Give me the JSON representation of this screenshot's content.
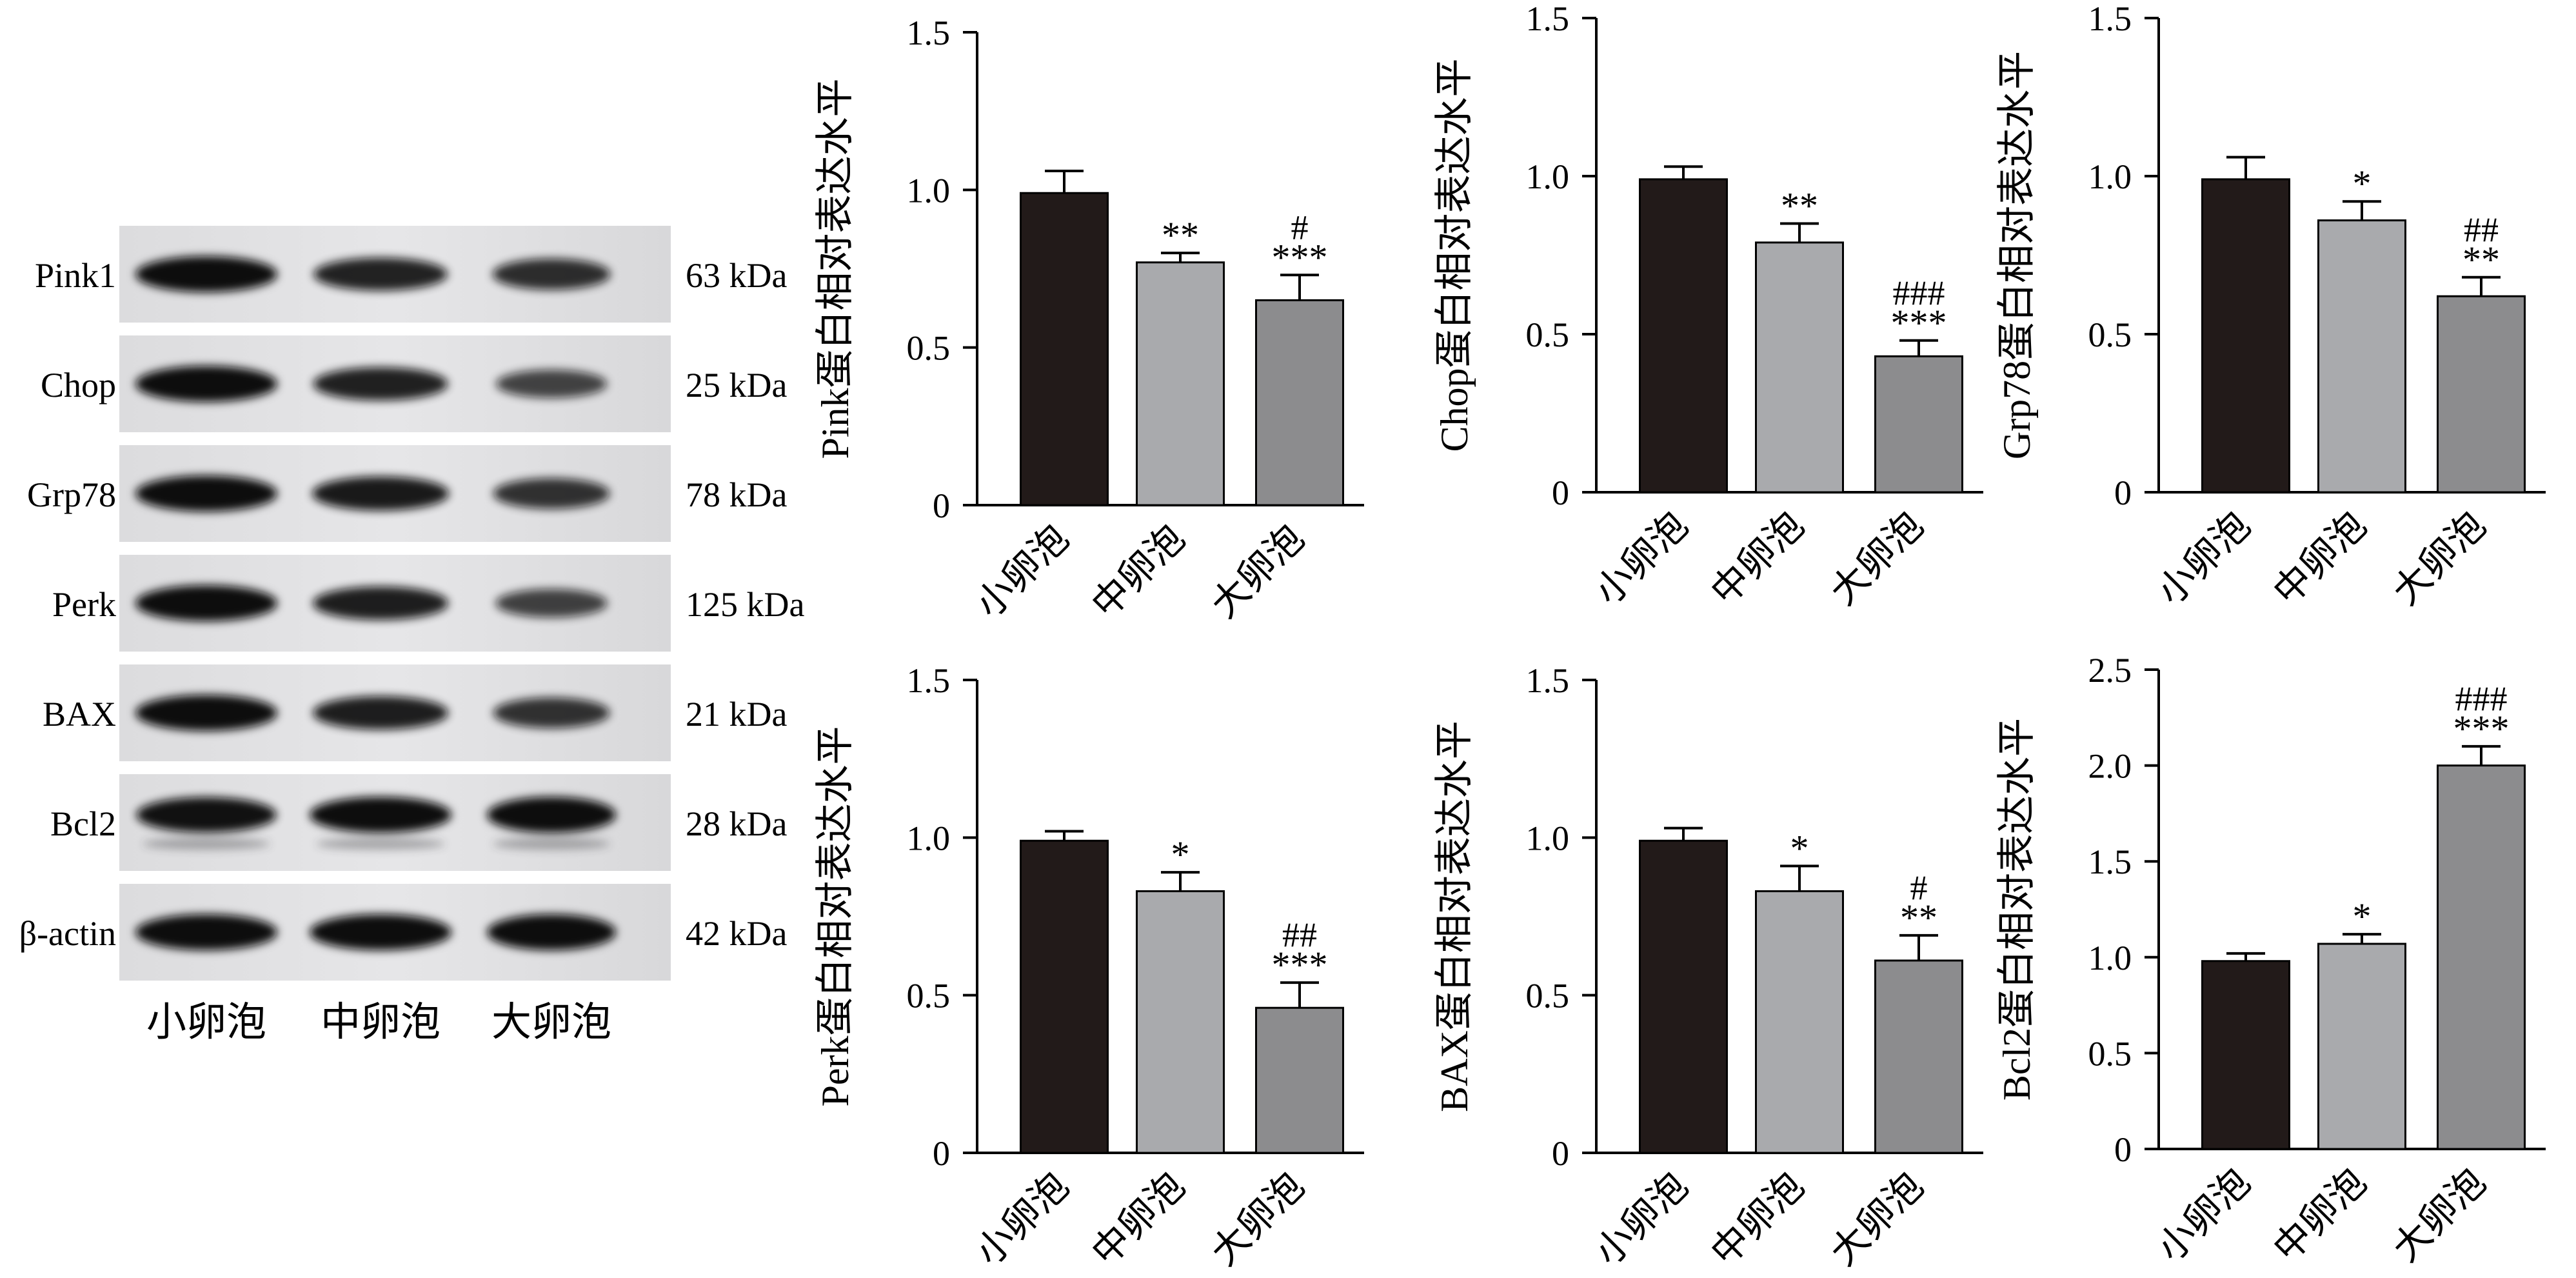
{
  "western_blot": {
    "proteins": [
      {
        "name": "Pink1",
        "kda": "63 kDa",
        "intensity": [
          1.0,
          0.78,
          0.66
        ]
      },
      {
        "name": "Chop",
        "kda": "25 kDa",
        "intensity": [
          1.0,
          0.8,
          0.45
        ]
      },
      {
        "name": "Grp78",
        "kda": "78 kDa",
        "intensity": [
          1.0,
          0.86,
          0.62
        ]
      },
      {
        "name": "Perk",
        "kda": "125 kDa",
        "intensity": [
          1.0,
          0.82,
          0.47
        ]
      },
      {
        "name": "BAX",
        "kda": "21 kDa",
        "intensity": [
          1.0,
          0.82,
          0.62
        ]
      },
      {
        "name": "Bcl2",
        "kda": "28 kDa",
        "intensity": [
          0.95,
          1.0,
          1.0
        ]
      },
      {
        "name": "β-actin",
        "kda": "42 kDa",
        "intensity": [
          1.0,
          1.0,
          1.0
        ]
      }
    ],
    "lanes": [
      "小卵泡",
      "中卵泡",
      "大卵泡"
    ]
  },
  "colors": {
    "small": "#221a19",
    "medium": "#a9aaad",
    "large": "#8c8c8e"
  },
  "chart_data": [
    {
      "type": "bar",
      "ylabel": "Pink蛋白相对表达水平",
      "categories": [
        "小卵泡",
        "中卵泡",
        "大卵泡"
      ],
      "values": [
        0.99,
        0.77,
        0.65
      ],
      "errors": [
        0.07,
        0.03,
        0.08
      ],
      "ylim": [
        0,
        1.5
      ],
      "yticks": [
        0,
        0.5,
        1.0,
        1.5
      ],
      "ytick_labels": [
        "0",
        "0.5",
        "1.0",
        "1.5"
      ],
      "annotations": [
        "",
        "**",
        "***"
      ],
      "hash": [
        "",
        "",
        "#"
      ]
    },
    {
      "type": "bar",
      "ylabel": "Chop蛋白相对表达水平",
      "categories": [
        "小卵泡",
        "中卵泡",
        "大卵泡"
      ],
      "values": [
        0.99,
        0.79,
        0.43
      ],
      "errors": [
        0.04,
        0.06,
        0.05
      ],
      "ylim": [
        0,
        1.5
      ],
      "yticks": [
        0,
        0.5,
        1.0,
        1.5
      ],
      "ytick_labels": [
        "0",
        "0.5",
        "1.0",
        "1.5"
      ],
      "annotations": [
        "",
        "**",
        "***"
      ],
      "hash": [
        "",
        "",
        "###"
      ]
    },
    {
      "type": "bar",
      "ylabel": "Grp78蛋白相对表达水平",
      "categories": [
        "小卵泡",
        "中卵泡",
        "大卵泡"
      ],
      "values": [
        0.99,
        0.86,
        0.62
      ],
      "errors": [
        0.07,
        0.06,
        0.06
      ],
      "ylim": [
        0,
        1.5
      ],
      "yticks": [
        0,
        0.5,
        1.0,
        1.5
      ],
      "ytick_labels": [
        "0",
        "0.5",
        "1.0",
        "1.5"
      ],
      "annotations": [
        "",
        "*",
        "**"
      ],
      "hash": [
        "",
        "",
        "##"
      ]
    },
    {
      "type": "bar",
      "ylabel": "Perk蛋白相对表达水平",
      "categories": [
        "小卵泡",
        "中卵泡",
        "大卵泡"
      ],
      "values": [
        0.99,
        0.83,
        0.46
      ],
      "errors": [
        0.03,
        0.06,
        0.08
      ],
      "ylim": [
        0,
        1.5
      ],
      "yticks": [
        0,
        0.5,
        1.0,
        1.5
      ],
      "ytick_labels": [
        "0",
        "0.5",
        "1.0",
        "1.5"
      ],
      "annotations": [
        "",
        "*",
        "***"
      ],
      "hash": [
        "",
        "",
        "##"
      ]
    },
    {
      "type": "bar",
      "ylabel": "BAX蛋白相对表达水平",
      "categories": [
        "小卵泡",
        "中卵泡",
        "大卵泡"
      ],
      "values": [
        0.99,
        0.83,
        0.61
      ],
      "errors": [
        0.04,
        0.08,
        0.08
      ],
      "ylim": [
        0,
        1.5
      ],
      "yticks": [
        0,
        0.5,
        1.0,
        1.5
      ],
      "ytick_labels": [
        "0",
        "0.5",
        "1.0",
        "1.5"
      ],
      "annotations": [
        "",
        "*",
        "**"
      ],
      "hash": [
        "",
        "",
        "#"
      ]
    },
    {
      "type": "bar",
      "ylabel": "Bcl2蛋白相对表达水平",
      "categories": [
        "小卵泡",
        "中卵泡",
        "大卵泡"
      ],
      "values": [
        0.98,
        1.07,
        2.0
      ],
      "errors": [
        0.04,
        0.05,
        0.1
      ],
      "ylim": [
        0,
        2.5
      ],
      "yticks": [
        0,
        0.5,
        1.0,
        1.5,
        2.0,
        2.5
      ],
      "ytick_labels": [
        "0",
        "0.5",
        "1.0",
        "1.5",
        "2.0",
        "2.5"
      ],
      "annotations": [
        "",
        "*",
        "***"
      ],
      "hash": [
        "",
        "",
        "###"
      ]
    }
  ]
}
